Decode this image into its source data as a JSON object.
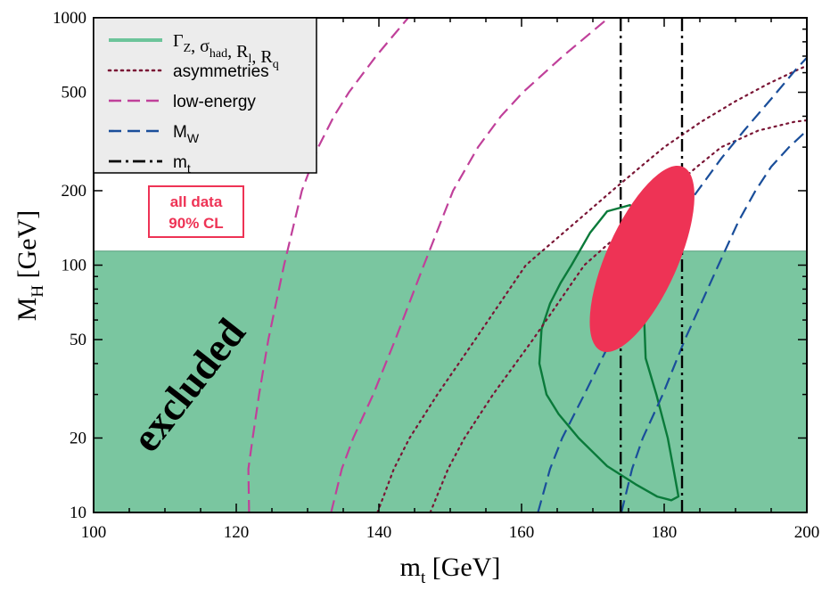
{
  "chart_data": {
    "type": "line",
    "xlabel": "m",
    "xlabel_sub": "t",
    "xlabel_unit": " [GeV]",
    "ylabel": "M",
    "ylabel_sub": "H",
    "ylabel_unit": " [GeV]",
    "xlim": [
      100,
      200
    ],
    "ylim": [
      10,
      1000
    ],
    "y_scale": "log",
    "x_ticks": [
      100,
      120,
      140,
      160,
      180,
      200
    ],
    "y_ticks": [
      10,
      20,
      50,
      100,
      200,
      500,
      1000
    ],
    "legend_position": "top-left",
    "excluded_label": "excluded",
    "excluded_below": 114,
    "cl_box": {
      "line1": "all data",
      "line2": "90% CL",
      "center_x": 176.9,
      "center_y": 106,
      "color": "#ee3355"
    },
    "legend": [
      {
        "key": "gz",
        "text": "Γ",
        "sub": "Z",
        "text2": ", σ",
        "sub2": "had",
        "text3": ", R",
        "sub3": "l",
        "text4": ", R",
        "sub4": "q",
        "color": "#6cc49a",
        "style": "solid"
      },
      {
        "key": "asym",
        "text": "asymmetries",
        "color": "#7a1535",
        "style": "dotted"
      },
      {
        "key": "lowe",
        "text": "low-energy",
        "color": "#c0409a",
        "style": "dashed"
      },
      {
        "key": "mw",
        "text": "M",
        "sub": "W",
        "color": "#1a4e9a",
        "style": "dashed"
      },
      {
        "key": "mt",
        "text": "m",
        "sub": "t",
        "color": "#000000",
        "style": "dashdot"
      }
    ],
    "colors": {
      "excluded": "#7ac6a0",
      "gz_contour": "#0a7a3a",
      "asym": "#7a1535",
      "lowe": "#c0409a",
      "mw": "#1a4e9a",
      "mt": "#000000",
      "ellipse": "#ee3355",
      "legend_bg": "#ececec"
    },
    "series": [
      {
        "key": "lowe",
        "points": [
          [
            121.8,
            10
          ],
          [
            121.7,
            15
          ],
          [
            122.3,
            20
          ],
          [
            123.2,
            30
          ],
          [
            124.5,
            50
          ],
          [
            126.7,
            100
          ],
          [
            129.2,
            200
          ],
          [
            131.5,
            300
          ],
          [
            133.7,
            400
          ],
          [
            135.8,
            500
          ],
          [
            139.6,
            700
          ],
          [
            144.1,
            1000
          ]
        ]
      },
      {
        "key": "lowe",
        "points": [
          [
            133.3,
            10
          ],
          [
            134.8,
            15
          ],
          [
            136.4,
            20
          ],
          [
            139.2,
            30
          ],
          [
            142.3,
            50
          ],
          [
            146.3,
            100
          ],
          [
            150.4,
            200
          ],
          [
            153.9,
            300
          ],
          [
            157.1,
            400
          ],
          [
            160.2,
            500
          ],
          [
            165.8,
            700
          ],
          [
            172.2,
            1000
          ]
        ]
      },
      {
        "key": "asym",
        "points": [
          [
            139.8,
            10
          ],
          [
            142.1,
            15
          ],
          [
            144.3,
            20
          ],
          [
            148.2,
            30
          ],
          [
            153.5,
            50
          ],
          [
            160.6,
            100
          ],
          [
            167.7,
            150
          ],
          [
            172.7,
            200
          ],
          [
            176.7,
            250
          ],
          [
            180.0,
            300
          ],
          [
            185.2,
            380
          ],
          [
            190.0,
            460
          ],
          [
            194.5,
            540
          ],
          [
            198.9,
            620
          ],
          [
            200,
            640
          ]
        ]
      },
      {
        "key": "asym",
        "points": [
          [
            147.2,
            10
          ],
          [
            149.7,
            15
          ],
          [
            152.0,
            20
          ],
          [
            156.0,
            30
          ],
          [
            161.6,
            50
          ],
          [
            168.8,
            100
          ],
          [
            175.7,
            150
          ],
          [
            180.7,
            200
          ],
          [
            184.6,
            250
          ],
          [
            188.0,
            300
          ],
          [
            193.2,
            350
          ],
          [
            198.3,
            380
          ],
          [
            200,
            385
          ]
        ]
      },
      {
        "key": "mw",
        "points": [
          [
            162.3,
            10
          ],
          [
            164.0,
            15
          ],
          [
            165.7,
            20
          ],
          [
            168.8,
            30
          ],
          [
            172.6,
            50
          ],
          [
            177.8,
            100
          ],
          [
            181.6,
            150
          ],
          [
            184.7,
            200
          ],
          [
            188.0,
            270
          ],
          [
            191.2,
            350
          ],
          [
            195.0,
            470
          ],
          [
            198.5,
            620
          ],
          [
            200,
            690
          ]
        ]
      },
      {
        "key": "mw",
        "points": [
          [
            174.0,
            10
          ],
          [
            175.5,
            15
          ],
          [
            177.0,
            20
          ],
          [
            179.8,
            30
          ],
          [
            182.9,
            50
          ],
          [
            187.6,
            100
          ],
          [
            190.4,
            150
          ],
          [
            192.8,
            200
          ],
          [
            195.0,
            250
          ],
          [
            197.5,
            300
          ],
          [
            200,
            350
          ]
        ]
      },
      {
        "key": "mt",
        "points": [
          [
            173.9,
            10
          ],
          [
            173.9,
            1000
          ]
        ]
      },
      {
        "key": "mt",
        "points": [
          [
            182.5,
            10
          ],
          [
            182.5,
            1000
          ]
        ]
      }
    ],
    "contour": {
      "key": "gz",
      "points": [
        [
          167.0,
          100
        ],
        [
          169.6,
          135
        ],
        [
          172.0,
          165
        ],
        [
          175.2,
          175
        ],
        [
          177.0,
          150
        ],
        [
          177.4,
          100
        ],
        [
          177.2,
          60
        ],
        [
          177.4,
          42
        ],
        [
          178.9,
          30
        ],
        [
          180.5,
          20
        ],
        [
          181.3,
          15
        ],
        [
          182.0,
          11.6
        ],
        [
          181.0,
          11.2
        ],
        [
          179.0,
          11.6
        ],
        [
          176.0,
          13
        ],
        [
          172.0,
          15.4
        ],
        [
          168.0,
          20
        ],
        [
          165.2,
          25
        ],
        [
          163.5,
          30
        ],
        [
          162.5,
          40
        ],
        [
          162.8,
          55
        ],
        [
          164.0,
          70
        ],
        [
          165.5,
          85
        ],
        [
          167.0,
          100
        ]
      ]
    },
    "ellipse": {
      "center_x": 176.9,
      "center_y": 106,
      "rx_deg_note": "rotated ellipse",
      "color": "#ee3355"
    }
  }
}
